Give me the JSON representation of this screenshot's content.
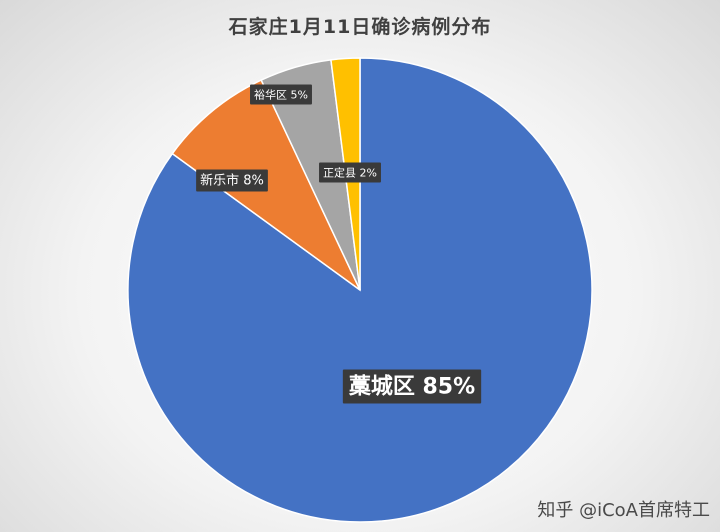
{
  "chart_data": {
    "type": "pie",
    "title": "石家庄1月11日确诊病例分布",
    "slices": [
      {
        "name": "藁城区",
        "value": 85,
        "label": "藁城区 85%",
        "color": "#4472C4"
      },
      {
        "name": "新乐市",
        "value": 8,
        "label": "新乐市 8%",
        "color": "#ED7D31"
      },
      {
        "name": "裕华区",
        "value": 5,
        "label": "裕华区 5%",
        "color": "#A5A5A5"
      },
      {
        "name": "正定县",
        "value": 2,
        "label": "正定县 2%",
        "color": "#FFC000"
      }
    ]
  },
  "watermark": "知乎 @iCoA首席特工"
}
